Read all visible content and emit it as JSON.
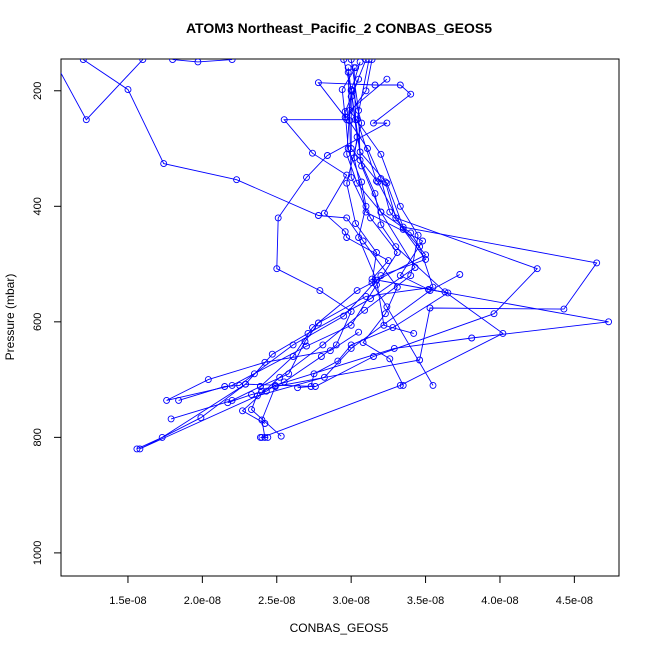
{
  "chart_data": {
    "type": "line",
    "title": "ATOM3 Northeast_Pacific_2 CONBAS_GEOS5",
    "xlabel": "CONBAS_GEOS5",
    "ylabel": "Pressure (mbar)",
    "xlim": [
      1.05e-08,
      4.8e-08
    ],
    "ylim": [
      1040,
      145
    ],
    "y_inverted": true,
    "grid": false,
    "marker": "open-circle",
    "colors": {
      "series": "#0000ff",
      "axis": "#000000"
    },
    "x_ticks": [
      {
        "value": 1.5e-08,
        "label": "1.5e-08"
      },
      {
        "value": 2e-08,
        "label": "2.0e-08"
      },
      {
        "value": 2.5e-08,
        "label": "2.5e-08"
      },
      {
        "value": 3e-08,
        "label": "3.0e-08"
      },
      {
        "value": 3.5e-08,
        "label": "3.5e-08"
      },
      {
        "value": 4e-08,
        "label": "4.0e-08"
      },
      {
        "value": 4.5e-08,
        "label": "4.5e-08"
      }
    ],
    "y_ticks": [
      {
        "value": 200,
        "label": "200"
      },
      {
        "value": 400,
        "label": "400"
      },
      {
        "value": 600,
        "label": "600"
      },
      {
        "value": 800,
        "label": "800"
      },
      {
        "value": 1000,
        "label": "1000"
      }
    ],
    "series": [
      {
        "points": [
          [
            1e-08,
            146
          ],
          [
            1.22e-08,
            250
          ],
          [
            1.6e-08,
            146
          ]
        ]
      },
      {
        "points": [
          [
            1.2e-08,
            146
          ],
          [
            1.5e-08,
            198
          ],
          [
            1.74e-08,
            326
          ],
          [
            2.23e-08,
            354
          ],
          [
            2.78e-08,
            416
          ],
          [
            2.97e-08,
            420
          ],
          [
            3.08e-08,
            460
          ],
          [
            3.31e-08,
            540
          ],
          [
            3.23e-08,
            586
          ],
          [
            3.08e-08,
            636
          ],
          [
            3.26e-08,
            664
          ],
          [
            3.35e-08,
            710
          ]
        ]
      },
      {
        "points": [
          [
            1.8e-08,
            146
          ],
          [
            1.97e-08,
            150
          ],
          [
            2.2e-08,
            146
          ]
        ]
      },
      {
        "points": [
          [
            2.95e-08,
            146
          ],
          [
            3e-08,
            198
          ],
          [
            2.97e-08,
            310
          ],
          [
            3.04e-08,
            360
          ],
          [
            3.2e-08,
            410
          ],
          [
            3.43e-08,
            506
          ],
          [
            3.13e-08,
            560
          ],
          [
            2.71e-08,
            620
          ],
          [
            2.47e-08,
            656
          ],
          [
            2.29e-08,
            708
          ],
          [
            1.99e-08,
            766
          ],
          [
            1.58e-08,
            820
          ],
          [
            2.37e-08,
            728
          ],
          [
            2.82e-08,
            696
          ],
          [
            3e-08,
            646
          ],
          [
            3.53e-08,
            546
          ],
          [
            3.73e-08,
            518
          ]
        ]
      },
      {
        "points": [
          [
            3e-08,
            146
          ],
          [
            3.05e-08,
            234
          ],
          [
            3.06e-08,
            320
          ],
          [
            3.16e-08,
            378
          ],
          [
            3.2e-08,
            432
          ],
          [
            3.3e-08,
            470
          ],
          [
            3.63e-08,
            548
          ],
          [
            4.02e-08,
            620
          ],
          [
            3.33e-08,
            710
          ],
          [
            2.4e-08,
            800
          ],
          [
            2.44e-08,
            800
          ],
          [
            2.39e-08,
            800
          ]
        ]
      },
      {
        "points": [
          [
            3.12e-08,
            146
          ],
          [
            3.04e-08,
            250
          ],
          [
            3.17e-08,
            356
          ],
          [
            3.23e-08,
            358
          ],
          [
            3.3e-08,
            420
          ],
          [
            4.25e-08,
            508
          ],
          [
            3.96e-08,
            586
          ],
          [
            3.15e-08,
            660
          ],
          [
            2.76e-08,
            712
          ],
          [
            2.29e-08,
            708
          ],
          [
            1.73e-08,
            800
          ],
          [
            1.56e-08,
            820
          ]
        ]
      },
      {
        "points": [
          [
            3.06e-08,
            150
          ],
          [
            3e-08,
            200
          ],
          [
            3.06e-08,
            306
          ],
          [
            3.24e-08,
            360
          ],
          [
            3.35e-08,
            436
          ],
          [
            4.65e-08,
            498
          ],
          [
            4.43e-08,
            578
          ],
          [
            3.53e-08,
            576
          ],
          [
            3.46e-08,
            666
          ],
          [
            2.49e-08,
            712
          ],
          [
            2.4e-08,
            770
          ],
          [
            2.42e-08,
            800
          ]
        ]
      },
      {
        "points": [
          [
            3.1e-08,
            146
          ],
          [
            3e-08,
            210
          ],
          [
            3e-08,
            300
          ],
          [
            3.18e-08,
            358
          ],
          [
            3.35e-08,
            440
          ],
          [
            3.5e-08,
            492
          ],
          [
            3.2e-08,
            520
          ],
          [
            2.95e-08,
            590
          ],
          [
            2.61e-08,
            640
          ],
          [
            2.35e-08,
            690
          ],
          [
            2.25e-08,
            710
          ],
          [
            2.15e-08,
            712
          ],
          [
            1.84e-08,
            736
          ]
        ]
      },
      {
        "points": [
          [
            2.98e-08,
            160
          ],
          [
            3.04e-08,
            280
          ],
          [
            3.02e-08,
            316
          ],
          [
            3.1e-08,
            410
          ],
          [
            3.48e-08,
            460
          ],
          [
            3.33e-08,
            520
          ],
          [
            3.52e-08,
            544
          ],
          [
            4.73e-08,
            600
          ],
          [
            3.81e-08,
            628
          ],
          [
            3.29e-08,
            646
          ],
          [
            2.49e-08,
            710
          ],
          [
            2.43e-08,
            720
          ],
          [
            2.33e-08,
            726
          ],
          [
            2.17e-08,
            740
          ]
        ]
      },
      {
        "points": [
          [
            3.02e-08,
            160
          ],
          [
            3.03e-08,
            250
          ],
          [
            3.07e-08,
            330
          ],
          [
            3.2e-08,
            410
          ],
          [
            3.4e-08,
            446
          ],
          [
            3.46e-08,
            470
          ],
          [
            3.55e-08,
            540
          ],
          [
            3.1e-08,
            556
          ],
          [
            2.78e-08,
            602
          ],
          [
            2.69e-08,
            634
          ],
          [
            2.58e-08,
            690
          ],
          [
            2.39e-08,
            712
          ],
          [
            2.2e-08,
            736
          ],
          [
            1.79e-08,
            768
          ]
        ]
      },
      {
        "points": [
          [
            3.14e-08,
            146
          ],
          [
            3.1e-08,
            200
          ],
          [
            2.97e-08,
            246
          ],
          [
            3.11e-08,
            300
          ],
          [
            3.2e-08,
            352
          ],
          [
            3.26e-08,
            410
          ],
          [
            3.5e-08,
            484
          ],
          [
            3.04e-08,
            546
          ],
          [
            2.74e-08,
            610
          ],
          [
            2.61e-08,
            660
          ],
          [
            2.39e-08,
            712
          ],
          [
            2.33e-08,
            752
          ],
          [
            2.53e-08,
            798
          ]
        ]
      },
      {
        "points": [
          [
            2.98e-08,
            168
          ],
          [
            2.99e-08,
            252
          ],
          [
            3e-08,
            350
          ],
          [
            3.13e-08,
            420
          ],
          [
            3.31e-08,
            480
          ],
          [
            3.17e-08,
            536
          ],
          [
            3e-08,
            606
          ],
          [
            2.7e-08,
            642
          ],
          [
            2.2e-08,
            710
          ],
          [
            1.76e-08,
            736
          ],
          [
            2.04e-08,
            700
          ],
          [
            2.42e-08,
            670
          ],
          [
            2.86e-08,
            650
          ],
          [
            3.05e-08,
            618
          ]
        ]
      },
      {
        "points": [
          [
            3.01e-08,
            200
          ],
          [
            3.07e-08,
            256
          ],
          [
            2.97e-08,
            360
          ],
          [
            3.03e-08,
            430
          ],
          [
            3.17e-08,
            480
          ],
          [
            3.14e-08,
            532
          ],
          [
            3.24e-08,
            574
          ],
          [
            3.55e-08,
            710
          ]
        ]
      },
      {
        "points": [
          [
            3.03e-08,
            160
          ],
          [
            2.94e-08,
            198
          ],
          [
            2.96e-08,
            246
          ],
          [
            2.78e-08,
            186
          ],
          [
            3.16e-08,
            190
          ],
          [
            3.33e-08,
            190
          ],
          [
            3.4e-08,
            206
          ],
          [
            3.15e-08,
            256
          ],
          [
            3.24e-08,
            256
          ],
          [
            2.84e-08,
            312
          ],
          [
            2.7e-08,
            350
          ],
          [
            2.51e-08,
            420
          ],
          [
            2.5e-08,
            508
          ],
          [
            2.79e-08,
            546
          ],
          [
            3e-08,
            582
          ],
          [
            2.9e-08,
            640
          ],
          [
            2.8e-08,
            660
          ],
          [
            2.55e-08,
            704
          ],
          [
            2.4e-08,
            720
          ]
        ]
      },
      {
        "points": [
          [
            3.05e-08,
            180
          ],
          [
            2.96e-08,
            236
          ],
          [
            2.98e-08,
            300
          ],
          [
            3.07e-08,
            358
          ],
          [
            3.1e-08,
            400
          ],
          [
            3.05e-08,
            454
          ],
          [
            3.17e-08,
            528
          ],
          [
            3.22e-08,
            606
          ],
          [
            3.42e-08,
            620
          ]
        ]
      },
      {
        "points": [
          [
            2.97e-08,
            250
          ],
          [
            2.55e-08,
            250
          ],
          [
            2.74e-08,
            308
          ],
          [
            2.97e-08,
            346
          ],
          [
            2.82e-08,
            412
          ],
          [
            2.96e-08,
            444
          ],
          [
            2.97e-08,
            454
          ],
          [
            3.25e-08,
            494
          ],
          [
            3.14e-08,
            526
          ],
          [
            3.65e-08,
            550
          ],
          [
            3.28e-08,
            610
          ],
          [
            3e-08,
            640
          ],
          [
            2.91e-08,
            668
          ],
          [
            2.75e-08,
            690
          ],
          [
            2.73e-08,
            712
          ],
          [
            2.64e-08,
            714
          ]
        ]
      },
      {
        "points": [
          [
            3.24e-08,
            180
          ],
          [
            2.99e-08,
            234
          ],
          [
            3.2e-08,
            310
          ],
          [
            3.33e-08,
            400
          ],
          [
            3.45e-08,
            450
          ],
          [
            3.4e-08,
            520
          ],
          [
            3.09e-08,
            580
          ],
          [
            2.81e-08,
            640
          ],
          [
            2.52e-08,
            696
          ],
          [
            2.27e-08,
            754
          ],
          [
            2.42e-08,
            776
          ]
        ]
      }
    ]
  }
}
